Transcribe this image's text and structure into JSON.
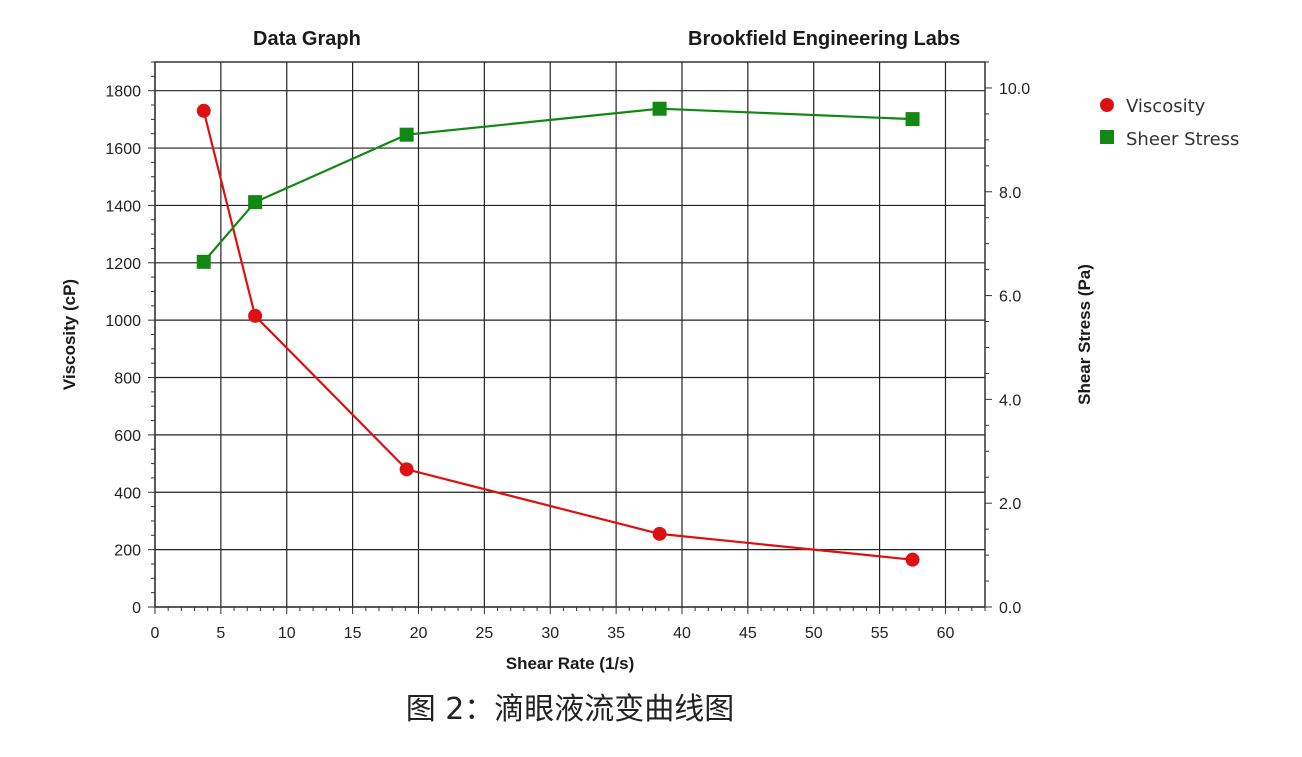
{
  "header": {
    "left_title": "Data Graph",
    "right_title": "Brookfield Engineering Labs"
  },
  "caption": "图 2：滴眼液流变曲线图",
  "chart_data": {
    "type": "line",
    "xlabel": "Shear Rate (1/s)",
    "ylabel": "Viscosity (cP)",
    "y2label": "Shear Stress (Pa)",
    "xlim": [
      0,
      63
    ],
    "ylim": [
      0,
      1900
    ],
    "y2lim": [
      0,
      10.5
    ],
    "xticks": [
      0,
      5,
      10,
      15,
      20,
      25,
      30,
      35,
      40,
      45,
      50,
      55,
      60
    ],
    "yticks": [
      0,
      200,
      400,
      600,
      800,
      1000,
      1200,
      1400,
      1600,
      1800
    ],
    "y2ticks": [
      "0.0",
      "2.0",
      "4.0",
      "6.0",
      "8.0",
      "10.0"
    ],
    "grid": true,
    "legend_position": "top-right-outside",
    "series": [
      {
        "name": "Viscosity",
        "axis": "left",
        "marker": "circle",
        "color": "#dd1111",
        "x": [
          3.7,
          7.6,
          19.1,
          38.3,
          57.5
        ],
        "y": [
          1730,
          1015,
          480,
          255,
          165
        ]
      },
      {
        "name": "Sheer Stress",
        "axis": "right",
        "marker": "square",
        "color": "#118811",
        "x": [
          3.7,
          7.6,
          19.1,
          38.3,
          57.5
        ],
        "y": [
          6.65,
          7.8,
          9.1,
          9.6,
          9.4
        ]
      }
    ]
  }
}
